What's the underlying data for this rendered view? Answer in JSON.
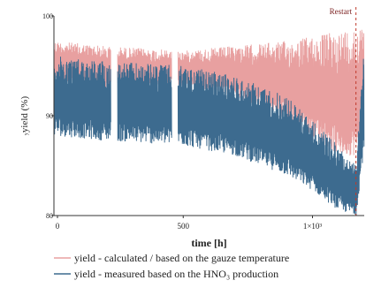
{
  "chart_data": {
    "type": "line",
    "title": "",
    "xlabel": "time [h]",
    "ylabel": "yield (%)",
    "ylabel_prefix": "y",
    "xlim": [
      0,
      1200
    ],
    "ylim": [
      80,
      100
    ],
    "x_ticks": [
      {
        "value": 0,
        "label": "0"
      },
      {
        "value": 500,
        "label": "500"
      },
      {
        "value": 1000,
        "label": "1×10³"
      }
    ],
    "y_ticks": [
      {
        "value": 80,
        "label": "80"
      },
      {
        "value": 90,
        "label": "90"
      },
      {
        "value": 100,
        "label": "100"
      }
    ],
    "gaps": [
      [
        220,
        245
      ],
      [
        455,
        480
      ]
    ],
    "restart": {
      "x": 1168,
      "label": "Restart"
    },
    "series": [
      {
        "name": "yield - calculated / based on the gauze temperature",
        "color": "#e8a0a0",
        "band": [
          {
            "x": 0,
            "low": 93.5,
            "high": 97.5
          },
          {
            "x": 200,
            "low": 92.5,
            "high": 97.0
          },
          {
            "x": 500,
            "low": 93.0,
            "high": 96.5
          },
          {
            "x": 700,
            "low": 92.0,
            "high": 97.0
          },
          {
            "x": 900,
            "low": 89.5,
            "high": 97.5
          },
          {
            "x": 1000,
            "low": 88.0,
            "high": 98.0
          },
          {
            "x": 1100,
            "low": 86.0,
            "high": 98.5
          },
          {
            "x": 1168,
            "low": 86.0,
            "high": 99.0
          },
          {
            "x": 1200,
            "low": 92.0,
            "high": 98.5
          }
        ]
      },
      {
        "name": "yield - measured based on the HNO₃ production",
        "color": "#3d6b8f",
        "band": [
          {
            "x": 0,
            "low": 88.0,
            "high": 96.0
          },
          {
            "x": 200,
            "low": 87.5,
            "high": 95.5
          },
          {
            "x": 500,
            "low": 87.0,
            "high": 95.0
          },
          {
            "x": 700,
            "low": 86.0,
            "high": 94.0
          },
          {
            "x": 900,
            "low": 84.0,
            "high": 92.0
          },
          {
            "x": 1000,
            "low": 82.5,
            "high": 89.5
          },
          {
            "x": 1100,
            "low": 80.5,
            "high": 87.0
          },
          {
            "x": 1168,
            "low": 80.0,
            "high": 85.0
          },
          {
            "x": 1200,
            "low": 87.0,
            "high": 97.0
          }
        ]
      }
    ],
    "legend_position": "bottom"
  }
}
